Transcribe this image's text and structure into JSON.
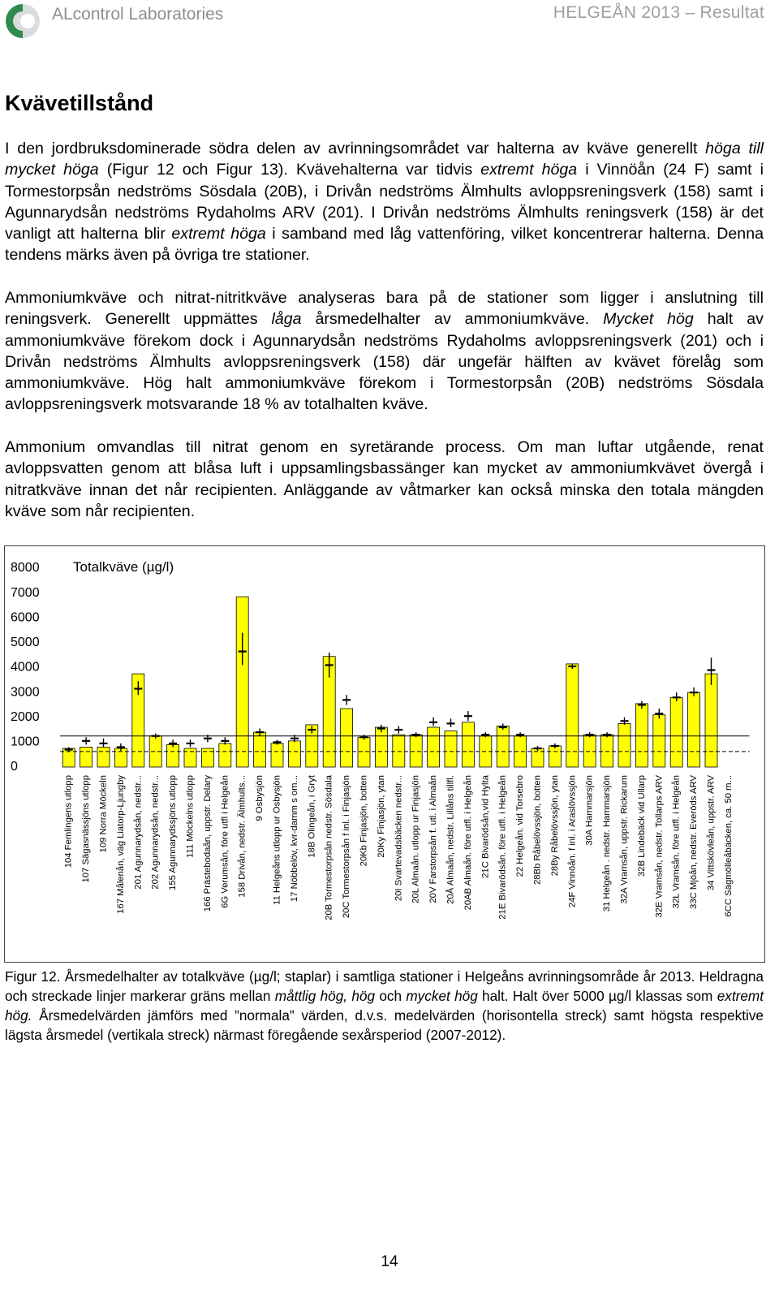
{
  "header": {
    "brand": "ALcontrol Laboratories",
    "running_title": "HELGEÅN 2013 – Resultat"
  },
  "heading": "Kvävetillstånd",
  "paragraphs": [
    {
      "runs": [
        {
          "text": "I den jordbruksdominerade södra delen av avrinningsområdet var halterna av kväve generellt "
        },
        {
          "text": "höga till mycket höga",
          "italic": true
        },
        {
          "text": " (Figur 12 och Figur 13). Kvävehalterna var tidvis "
        },
        {
          "text": "extremt höga",
          "italic": true
        },
        {
          "text": " i Vinnöån (24 F) samt i Tormestorpsån nedströms Sösdala (20B), i Drivån nedströms Älmhults avloppsreningsverk (158) samt i Agunnarydsån nedströms Rydaholms ARV (201). I Drivån nedströms Älmhults reningsverk (158) är det vanligt att halterna blir "
        },
        {
          "text": "extremt höga",
          "italic": true
        },
        {
          "text": " i samband med låg vattenföring, vilket koncentrerar halterna. Denna tendens märks även på övriga tre stationer."
        }
      ]
    },
    {
      "runs": [
        {
          "text": "Ammoniumkväve och nitrat-nitritkväve analyseras bara på de stationer som ligger i anslutning till reningsverk. Generellt uppmättes "
        },
        {
          "text": "låga",
          "italic": true
        },
        {
          "text": " årsmedelhalter av ammoniumkväve. "
        },
        {
          "text": "Mycket hög",
          "italic": true
        },
        {
          "text": " halt av ammoniumkväve förekom dock i Agunnarydsån nedströms Rydaholms avloppsreningsverk (201) och i Drivån nedströms Älmhults avloppsreningsverk (158) där ungefär hälften av kvävet förelåg som ammoniumkväve. Hög halt ammoniumkväve förekom i Tormestorpsån (20B) nedströms Sösdala avloppsreningsverk motsvarande 18 % av totalhalten kväve."
        }
      ]
    },
    {
      "runs": [
        {
          "text": "Ammonium omvandlas till nitrat genom en syretärande process. Om man luftar utgående, renat avloppsvatten genom att blåsa luft i uppsamlingsbassänger kan mycket av ammoniumkvävet övergå i nitratkväve innan det når recipienten. Anläggande av våtmarker kan också minska den totala mängden kväve som når recipienten."
        }
      ]
    }
  ],
  "chart_data": {
    "type": "bar",
    "title": "Totalkväve (µg/l)",
    "categories": [
      "104 Femlingens utlopp",
      "107 Sägasnässjöns utlopp",
      "109 Norra Möckeln",
      "167 Målenån, väg Liatorp-Ljungby",
      "201 Agunnarydsån, nedstr...",
      "202 Agunnarydsån, nedstr...",
      "155 Agunnarydssjöns utlopp",
      "111 Möckelns utlopp",
      "166 Prästebodaån, uppstr. Delary",
      "6G Verumsån, före utfl i Helgeån",
      "158 Drivån, nedstr. Älmhults...",
      "9 Osbysjön",
      "11 Helgeåns utlopp ur Osbysjön",
      "17 Nöbbelöv, kvr-damm s om...",
      "18B Olingeån, i Gryt",
      "20B Tormestorpsån nedstr. Sösdala",
      "20C Tormestorpsån f inl. i Finjasjön",
      "20Kb Finjasjön, botten",
      "20Ky Finjasjön, ytan",
      "20I Svartevadsbäcken nedstr...",
      "20L Almaån. utlopp ur Finjasjön",
      "20V Farstorpsån f. utl. i Almaån",
      "20Å Almaån, nedstr. Lillåns tillfl.",
      "20AB Almaån. före utfl. i Helgeån",
      "21C Bivarödsån,vid Hylta",
      "21E Bivarödsån. före utfl. i Helgeån",
      "22 Helgeån. vid Torsebro",
      "28Bb Råbelövssjön, botten",
      "28By Råbelövssjön, ytan",
      "24F Vinnöån. f inl. i Araslövssjön",
      "30A Hammarsjön",
      "31 Helgeån . nedstr. Hammarsjön",
      "32A Vramsån, uppstr. Rickarum",
      "32B Lindebäck vid Ullarp",
      "32E Vramsån, nedstr. Tollarps ARV",
      "32L Vramsån. före utfl. i Helgeån",
      "33C Mjöån, nedstr. Everöds ARV",
      "34 Vittskövleån, uppstr. ARV",
      "6CC Sägmölleåbäcken, ca. 50 m..."
    ],
    "values": [
      750,
      800,
      800,
      750,
      3750,
      1250,
      900,
      750,
      750,
      950,
      6850,
      1400,
      950,
      1050,
      1700,
      4450,
      2350,
      1200,
      1600,
      1300,
      1300,
      1600,
      1450,
      1800,
      1250,
      1650,
      1250,
      750,
      850,
      4150,
      1300,
      1300,
      1750,
      2550,
      2100,
      2800,
      3000,
      3750,
      null
    ],
    "normal": [
      700,
      1050,
      950,
      800,
      3150,
      1250,
      950,
      950,
      1150,
      1050,
      4650,
      1400,
      1000,
      1150,
      1500,
      4100,
      2700,
      1200,
      1550,
      1500,
      1300,
      1800,
      1750,
      2050,
      1300,
      1600,
      1300,
      750,
      850,
      4050,
      1300,
      1300,
      1850,
      2500,
      2150,
      2800,
      3000,
      3900,
      null
    ],
    "low": [
      600,
      900,
      800,
      650,
      2900,
      1150,
      800,
      800,
      1000,
      900,
      4100,
      1250,
      900,
      1000,
      1350,
      3600,
      2500,
      1100,
      1400,
      1350,
      1200,
      1650,
      1600,
      1850,
      1200,
      1500,
      1200,
      650,
      750,
      3950,
      1200,
      1200,
      1700,
      2350,
      1950,
      2650,
      2850,
      3300,
      null
    ],
    "high": [
      800,
      1200,
      1150,
      950,
      3450,
      1350,
      1100,
      1100,
      1300,
      1200,
      5400,
      1550,
      1100,
      1300,
      1650,
      4600,
      2900,
      1300,
      1700,
      1650,
      1400,
      2000,
      1950,
      2250,
      1400,
      1750,
      1400,
      850,
      950,
      4150,
      1400,
      1400,
      2000,
      2650,
      2350,
      3000,
      3200,
      4400,
      null
    ],
    "color": "#ffff00",
    "thresholds": [
      {
        "value": 1250,
        "style": "solid"
      },
      {
        "value": 625,
        "style": "dashed"
      }
    ],
    "ylim": [
      0,
      8000
    ],
    "yticks": [
      0,
      1000,
      2000,
      3000,
      4000,
      5000,
      6000,
      7000,
      8000
    ]
  },
  "caption": {
    "runs": [
      {
        "text": "Figur 12. Årsmedelhalter av totalkväve (µg/l; staplar) i samtliga stationer i Helgeåns avrinningsområde år 2013. Heldragna och streckade linjer markerar gräns mellan "
      },
      {
        "text": "måttlig hög, hög",
        "italic": true
      },
      {
        "text": " och "
      },
      {
        "text": "mycket hög",
        "italic": true
      },
      {
        "text": " halt. Halt över 5000 µg/l klassas som "
      },
      {
        "text": "extremt hög.",
        "italic": true
      },
      {
        "text": " Årsmedelvärden jämförs med ”normala” värden, d.v.s. medelvärden (horisontella streck) samt högsta respektive lägsta årsmedel (vertikala streck) närmast föregående sexårsperiod (2007-2012)."
      }
    ]
  },
  "page_number": "14"
}
